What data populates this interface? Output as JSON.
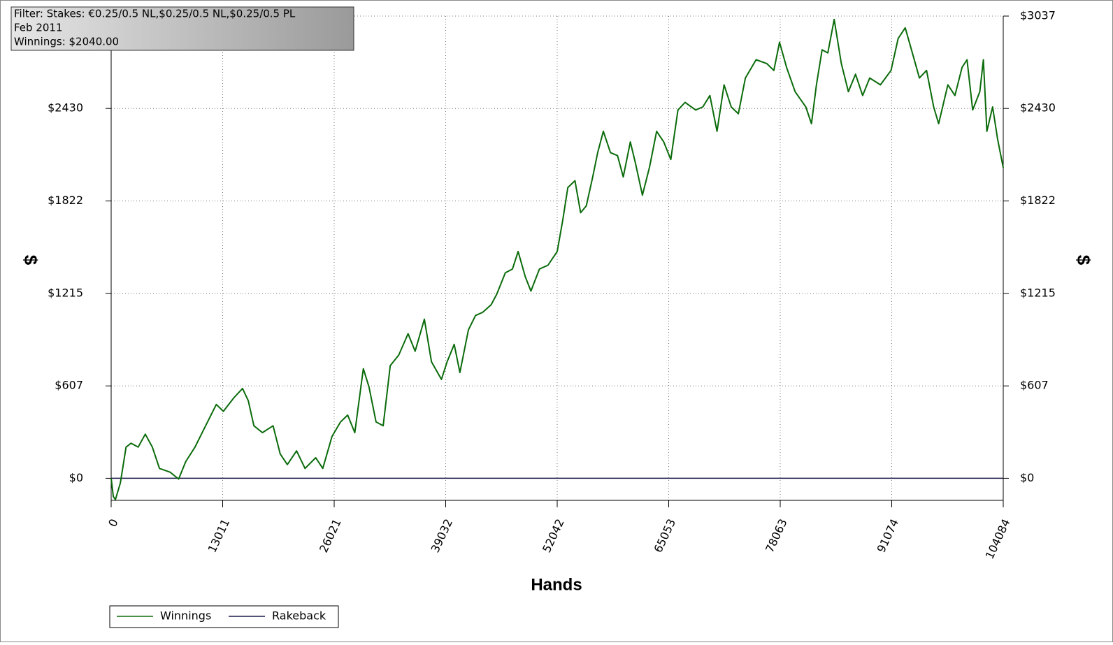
{
  "chart_data": {
    "type": "line",
    "annotations": [
      "Filter: Stakes: €0.25/0.5 NL,$0.25/0.5 NL,$0.25/0.5 PL",
      "Feb 2011",
      "Winnings: $2040.00"
    ],
    "x_label": "Hands",
    "y_label": "$",
    "y2_label": "$",
    "xlim": [
      0,
      104084
    ],
    "ylim": [
      -145,
      3037
    ],
    "xticks": [
      0,
      13011,
      26021,
      39032,
      52042,
      65053,
      78063,
      91074,
      104084
    ],
    "yticks": [
      {
        "value": 0,
        "label": "$0"
      },
      {
        "value": 607,
        "label": "$607"
      },
      {
        "value": 1215,
        "label": "$1215"
      },
      {
        "value": 1822,
        "label": "$1822"
      },
      {
        "value": 2430,
        "label": "$2430"
      },
      {
        "value": 3037,
        "label": "$3037"
      }
    ],
    "grid": true,
    "legend": "bottom-left",
    "series": [
      {
        "name": "Winnings",
        "color": "#0b6b0b",
        "x": [
          0,
          249,
          497,
          1077,
          1740,
          2320,
          3149,
          3978,
          4806,
          5635,
          6878,
          7873,
          8701,
          9779,
          11022,
          12265,
          13093,
          14336,
          15331,
          15994,
          16657,
          17651,
          18894,
          19723,
          20552,
          21629,
          22623,
          23866,
          24695,
          25772,
          26767,
          27596,
          28424,
          29419,
          30081,
          30910,
          31739,
          32567,
          33562,
          34639,
          35468,
          36545,
          37374,
          38534,
          39197,
          40026,
          40689,
          41683,
          42512,
          43341,
          44335,
          44998,
          45992,
          46821,
          47484,
          48312,
          48975,
          49970,
          50964,
          52042,
          52705,
          53285,
          54114,
          54777,
          55439,
          56185,
          56765,
          57428,
          58257,
          59085,
          59748,
          60577,
          61157,
          61986,
          62815,
          63644,
          64472,
          65301,
          66130,
          66958,
          68201,
          69030,
          69859,
          70688,
          71516,
          72345,
          73174,
          74003,
          75246,
          76489,
          77318,
          77980,
          78809,
          79803,
          81046,
          81709,
          82290,
          82953,
          83616,
          84362,
          85190,
          86019,
          86848,
          87677,
          88505,
          89748,
          90991,
          91820,
          92649,
          93477,
          94306,
          95135,
          95964,
          96544,
          97621,
          98450,
          99279,
          99859,
          100522,
          101350,
          101764,
          102179,
          102842,
          103422,
          104084
        ],
        "values": [
          0,
          -120,
          -140,
          -30,
          205,
          230,
          205,
          290,
          205,
          65,
          40,
          -5,
          110,
          205,
          345,
          485,
          440,
          530,
          590,
          510,
          345,
          300,
          345,
          160,
          90,
          180,
          65,
          135,
          65,
          275,
          370,
          415,
          300,
          720,
          600,
          370,
          345,
          740,
          810,
          950,
          835,
          1045,
          765,
          650,
          765,
          880,
          695,
          975,
          1070,
          1090,
          1140,
          1210,
          1350,
          1375,
          1490,
          1325,
          1230,
          1375,
          1400,
          1490,
          1700,
          1910,
          1955,
          1745,
          1790,
          1980,
          2140,
          2280,
          2140,
          2120,
          1980,
          2210,
          2075,
          1860,
          2045,
          2280,
          2210,
          2095,
          2420,
          2470,
          2420,
          2440,
          2515,
          2280,
          2585,
          2440,
          2395,
          2630,
          2750,
          2725,
          2680,
          2865,
          2700,
          2540,
          2440,
          2330,
          2585,
          2815,
          2795,
          3015,
          2725,
          2540,
          2655,
          2515,
          2630,
          2585,
          2680,
          2890,
          2960,
          2795,
          2630,
          2680,
          2440,
          2330,
          2585,
          2515,
          2700,
          2750,
          2420,
          2540,
          2750,
          2280,
          2440,
          2230,
          2040
        ]
      },
      {
        "name": "Rakeback",
        "color": "#1a1a4a",
        "x": [
          0,
          104084
        ],
        "values": [
          0,
          0
        ]
      }
    ]
  }
}
